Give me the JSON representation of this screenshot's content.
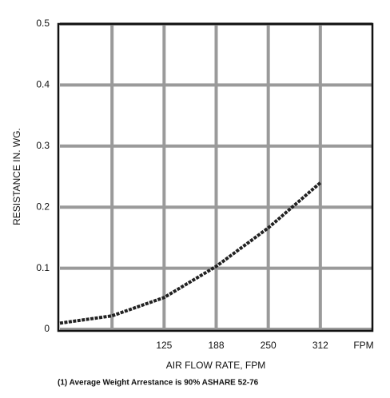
{
  "chart_data": {
    "type": "line",
    "x_label": "AIR FLOW RATE, FPM",
    "y_label": "RESISTANCE IN. WG.",
    "x_unit": "FPM",
    "footnote": "(1) Average Weight Arrestance is 90% ASHARE 52-76",
    "x": [
      0,
      62.5,
      125,
      187.5,
      250,
      312.5
    ],
    "values": [
      0.01,
      0.022,
      0.052,
      0.103,
      0.166,
      0.24
    ],
    "color": "#222222",
    "xlim": [
      0,
      375
    ],
    "ylim": [
      0,
      0.5
    ],
    "xticks": [
      {
        "value": 62.5,
        "label": null
      },
      125,
      {
        "value": 187.5,
        "label": "188"
      },
      250,
      {
        "value": 312.5,
        "label": "312"
      }
    ],
    "yticks": [
      0,
      0.1,
      0.2,
      0.3,
      0.4,
      0.5
    ],
    "grid": true
  }
}
